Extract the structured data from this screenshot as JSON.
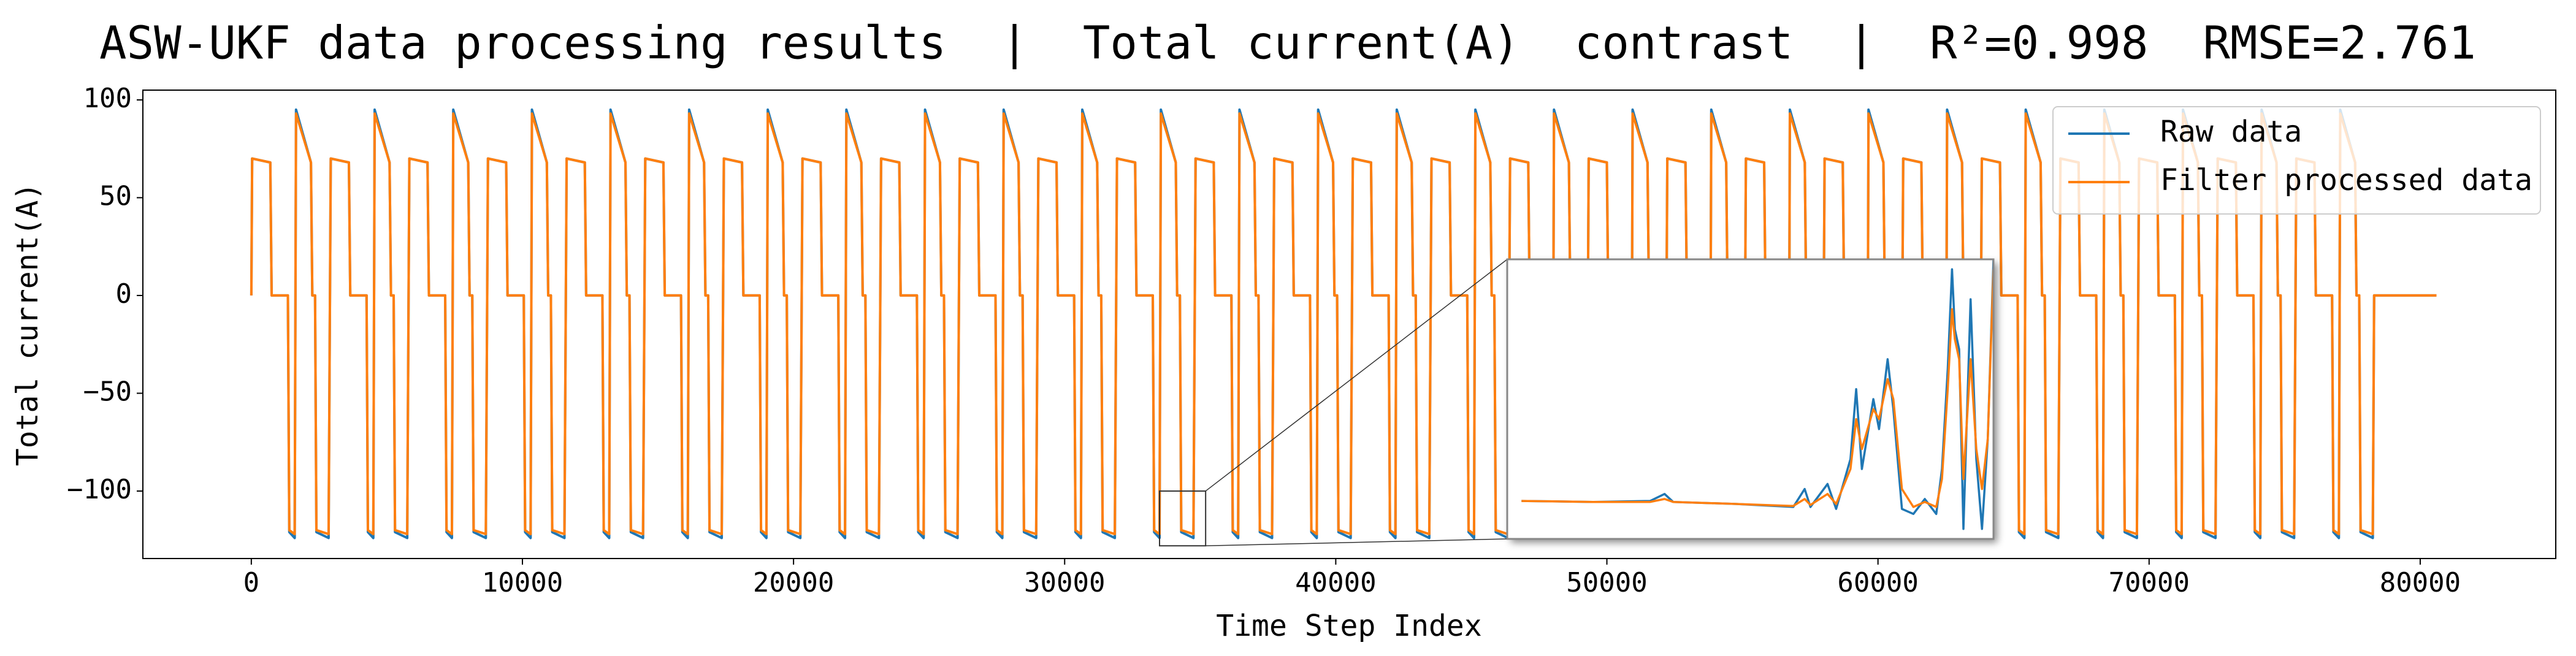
{
  "chart_data": [
    {
      "type": "line",
      "title": "ASW-UKF data processing results  |  Total current(A)  contrast  |  R²=0.998  RMSE=2.761",
      "x_label": "Time Step Index",
      "y_label": "Total current(A)",
      "xlim": [
        -4000,
        85000
      ],
      "ylim": [
        -134.5,
        105
      ],
      "xticks": [
        0,
        10000,
        20000,
        30000,
        40000,
        50000,
        60000,
        70000,
        80000
      ],
      "yticks": [
        {
          "value": -100,
          "label": "−100"
        },
        {
          "value": -50,
          "label": "−50"
        },
        0,
        50,
        100
      ],
      "legend": "upper right",
      "x": [
        0,
        30,
        700,
        750,
        1350,
        1400,
        1600,
        1650,
        2200,
        2250,
        2350,
        2400,
        2850,
        2930,
        3600,
        3650,
        4250,
        4300,
        4500,
        4550,
        5100,
        5150,
        5250,
        5300,
        5750,
        5830,
        6500,
        6550,
        7150,
        7200,
        7400,
        7450,
        8000,
        8050,
        8150,
        8200,
        8650,
        8730,
        9400,
        9450,
        10050,
        10100,
        10300,
        10350,
        10900,
        10950,
        11050,
        11100,
        11550,
        11630,
        12300,
        12350,
        12950,
        13000,
        13200,
        13250,
        13800,
        13850,
        13950,
        14000,
        14450,
        14530,
        15200,
        15250,
        15850,
        15900,
        16100,
        16150,
        16700,
        16750,
        16850,
        16900,
        17350,
        17430,
        18100,
        18150,
        18750,
        18800,
        19000,
        19050,
        19600,
        19650,
        19750,
        19800,
        20250,
        20330,
        21000,
        21050,
        21650,
        21700,
        21900,
        21950,
        22500,
        22550,
        22650,
        22700,
        23150,
        23230,
        23900,
        23950,
        24550,
        24600,
        24800,
        24850,
        25400,
        25450,
        25550,
        25600,
        26050,
        26130,
        26800,
        26850,
        27450,
        27500,
        27700,
        27750,
        28300,
        28350,
        28450,
        28500,
        28950,
        29030,
        29700,
        29750,
        30350,
        30400,
        30600,
        30650,
        31200,
        31250,
        31350,
        31400,
        31850,
        31930,
        32600,
        32650,
        33250,
        33300,
        33500,
        33550,
        34100,
        34150,
        34250,
        34300,
        34750,
        34830,
        35500,
        35550,
        36150,
        36200,
        36400,
        36450,
        37000,
        37050,
        37150,
        37200,
        37650,
        37730,
        38400,
        38450,
        39050,
        39100,
        39300,
        39350,
        39900,
        39950,
        40050,
        40100,
        40550,
        40630,
        41300,
        41350,
        41950,
        42000,
        42200,
        42250,
        42800,
        42850,
        42950,
        43000,
        43450,
        43530,
        44200,
        44250,
        44850,
        44900,
        45100,
        45150,
        45700,
        45750,
        45850,
        45900,
        46350,
        46430,
        47100,
        47150,
        47750,
        47800,
        48000,
        48050,
        48600,
        48650,
        48750,
        48800,
        49250,
        49330,
        50000,
        50050,
        50650,
        50700,
        50900,
        50950,
        51500,
        51550,
        51650,
        51700,
        52150,
        52230,
        52900,
        52950,
        53550,
        53600,
        53800,
        53850,
        54400,
        54450,
        54550,
        54600,
        55050,
        55130,
        55800,
        55850,
        56450,
        56500,
        56700,
        56750,
        57300,
        57350,
        57450,
        57500,
        57950,
        58030,
        58700,
        58750,
        59350,
        59400,
        59600,
        59650,
        60200,
        60250,
        60350,
        60400,
        60850,
        60930,
        61600,
        61650,
        62250,
        62300,
        62500,
        62550,
        63100,
        63150,
        63250,
        63300,
        63750,
        63830,
        64500,
        64550,
        65150,
        65200,
        65400,
        65450,
        66000,
        66050,
        66150,
        66200,
        66650,
        66730,
        67400,
        67450,
        68050,
        68100,
        68300,
        68350,
        68900,
        68950,
        69050,
        69100,
        69550,
        69630,
        70300,
        70350,
        70950,
        71000,
        71200,
        71250,
        71800,
        71850,
        71950,
        72000,
        72450,
        72530,
        73200,
        73250,
        73850,
        73900,
        74100,
        74150,
        74700,
        74750,
        74850,
        74900,
        75350,
        75430,
        76100,
        76150,
        76750,
        76800,
        77000,
        77050,
        77600,
        77650,
        77750,
        77800,
        78250,
        78300,
        80600
      ],
      "series": [
        {
          "name": "Raw data",
          "color": "#1f77b4",
          "values": [
            0,
            70,
            68,
            0,
            0,
            -121,
            -124,
            95,
            68,
            0,
            0,
            -121,
            -124,
            70,
            68,
            0,
            0,
            -121,
            -124,
            95,
            68,
            0,
            0,
            -121,
            -124,
            70,
            68,
            0,
            0,
            -121,
            -124,
            95,
            68,
            0,
            0,
            -121,
            -124,
            70,
            68,
            0,
            0,
            -121,
            -124,
            95,
            68,
            0,
            0,
            -121,
            -124,
            70,
            68,
            0,
            0,
            -121,
            -124,
            95,
            68,
            0,
            0,
            -121,
            -124,
            70,
            68,
            0,
            0,
            -121,
            -124,
            95,
            68,
            0,
            0,
            -121,
            -124,
            70,
            68,
            0,
            0,
            -121,
            -124,
            95,
            68,
            0,
            0,
            -121,
            -124,
            70,
            68,
            0,
            0,
            -121,
            -124,
            95,
            68,
            0,
            0,
            -121,
            -124,
            70,
            68,
            0,
            0,
            -121,
            -124,
            95,
            68,
            0,
            0,
            -121,
            -124,
            70,
            68,
            0,
            0,
            -121,
            -124,
            95,
            68,
            0,
            0,
            -121,
            -124,
            70,
            68,
            0,
            0,
            -121,
            -124,
            95,
            68,
            0,
            0,
            -121,
            -124,
            70,
            68,
            0,
            0,
            -121,
            -124,
            95,
            68,
            0,
            0,
            -121,
            -124,
            70,
            68,
            0,
            0,
            -121,
            -124,
            95,
            68,
            0,
            0,
            -121,
            -124,
            70,
            68,
            0,
            0,
            -121,
            -124,
            95,
            68,
            0,
            0,
            -121,
            -124,
            70,
            68,
            0,
            0,
            -121,
            -124,
            95,
            68,
            0,
            0,
            -121,
            -124,
            70,
            68,
            0,
            0,
            -121,
            -124,
            95,
            68,
            0,
            0,
            -121,
            -124,
            70,
            68,
            0,
            0,
            -121,
            -124,
            95,
            68,
            0,
            0,
            -121,
            -124,
            70,
            68,
            0,
            0,
            -121,
            -124,
            95,
            68,
            0,
            0,
            -121,
            -124,
            70,
            68,
            0,
            0,
            -121,
            -124,
            95,
            68,
            0,
            0,
            -121,
            -124,
            70,
            68,
            0,
            0,
            -121,
            -124,
            95,
            68,
            0,
            0,
            -121,
            -124,
            70,
            68,
            0,
            0,
            -121,
            -124,
            95,
            68,
            0,
            0,
            -121,
            -124,
            70,
            68,
            0,
            0,
            -121,
            -124,
            95,
            68,
            0,
            0,
            -121,
            -124,
            70,
            68,
            0,
            0,
            -121,
            -124,
            95,
            68,
            0,
            0,
            -121,
            -124,
            70,
            68,
            0,
            0,
            -121,
            -124,
            95,
            68,
            0,
            0,
            -121,
            -124,
            70,
            68,
            0,
            0,
            -121,
            -124,
            95,
            68,
            0,
            0,
            -121,
            -124,
            70,
            68,
            0,
            0,
            -121,
            -124,
            95,
            68,
            0,
            0,
            -121,
            -124,
            70,
            68,
            0,
            0,
            -121,
            -124,
            95,
            68,
            0,
            0,
            -121,
            -124,
            0,
            0
          ]
        },
        {
          "name": "Filter processed data",
          "color": "#ff7f0e",
          "values": [
            0,
            70,
            68,
            0,
            0,
            -120,
            -122,
            93,
            68,
            0,
            0,
            -120,
            -122,
            70,
            68,
            0,
            0,
            -120,
            -122,
            93,
            68,
            0,
            0,
            -120,
            -122,
            70,
            68,
            0,
            0,
            -120,
            -122,
            93,
            68,
            0,
            0,
            -120,
            -122,
            70,
            68,
            0,
            0,
            -120,
            -122,
            93,
            68,
            0,
            0,
            -120,
            -122,
            70,
            68,
            0,
            0,
            -120,
            -122,
            93,
            68,
            0,
            0,
            -120,
            -122,
            70,
            68,
            0,
            0,
            -120,
            -122,
            93,
            68,
            0,
            0,
            -120,
            -122,
            70,
            68,
            0,
            0,
            -120,
            -122,
            93,
            68,
            0,
            0,
            -120,
            -122,
            70,
            68,
            0,
            0,
            -120,
            -122,
            93,
            68,
            0,
            0,
            -120,
            -122,
            70,
            68,
            0,
            0,
            -120,
            -122,
            93,
            68,
            0,
            0,
            -120,
            -122,
            70,
            68,
            0,
            0,
            -120,
            -122,
            93,
            68,
            0,
            0,
            -120,
            -122,
            70,
            68,
            0,
            0,
            -120,
            -122,
            93,
            68,
            0,
            0,
            -120,
            -122,
            70,
            68,
            0,
            0,
            -120,
            -122,
            93,
            68,
            0,
            0,
            -120,
            -122,
            70,
            68,
            0,
            0,
            -120,
            -122,
            93,
            68,
            0,
            0,
            -120,
            -122,
            70,
            68,
            0,
            0,
            -120,
            -122,
            93,
            68,
            0,
            0,
            -120,
            -122,
            70,
            68,
            0,
            0,
            -120,
            -122,
            93,
            68,
            0,
            0,
            -120,
            -122,
            70,
            68,
            0,
            0,
            -120,
            -122,
            93,
            68,
            0,
            0,
            -120,
            -122,
            70,
            68,
            0,
            0,
            -120,
            -122,
            93,
            68,
            0,
            0,
            -120,
            -122,
            70,
            68,
            0,
            0,
            -120,
            -122,
            93,
            68,
            0,
            0,
            -120,
            -122,
            70,
            68,
            0,
            0,
            -120,
            -122,
            93,
            68,
            0,
            0,
            -120,
            -122,
            70,
            68,
            0,
            0,
            -120,
            -122,
            93,
            68,
            0,
            0,
            -120,
            -122,
            70,
            68,
            0,
            0,
            -120,
            -122,
            93,
            68,
            0,
            0,
            -120,
            -122,
            70,
            68,
            0,
            0,
            -120,
            -122,
            93,
            68,
            0,
            0,
            -120,
            -122,
            70,
            68,
            0,
            0,
            -120,
            -122,
            93,
            68,
            0,
            0,
            -120,
            -122,
            70,
            68,
            0,
            0,
            -120,
            -122,
            93,
            68,
            0,
            0,
            -120,
            -122,
            70,
            68,
            0,
            0,
            -120,
            -122,
            93,
            68,
            0,
            0,
            -120,
            -122,
            70,
            68,
            0,
            0,
            -120,
            -122,
            93,
            68,
            0,
            0,
            -120,
            -122,
            70,
            68,
            0,
            0,
            -120,
            -122,
            93,
            68,
            0,
            0,
            -120,
            -122,
            0,
            0
          ]
        }
      ]
    },
    {
      "type": "line",
      "xlim": [
        33500,
        35200
      ],
      "ylim": [
        -128,
        -100
      ],
      "x": [
        33550,
        33800,
        34000,
        34050,
        34080,
        34300,
        34500,
        34540,
        34560,
        34620,
        34650,
        34700,
        34720,
        34740,
        34780,
        34800,
        34830,
        34850,
        34880,
        34920,
        34960,
        35000,
        35020,
        35040,
        35055,
        35065,
        35080,
        35095,
        35120,
        35140,
        35160,
        35180,
        35200
      ],
      "series": [
        {
          "color": "#1f77b4",
          "values": [
            -124.2,
            -124.3,
            -124.2,
            -123.5,
            -124.3,
            -124.5,
            -124.8,
            -123,
            -124.8,
            -122.5,
            -125,
            -120,
            -113,
            -121,
            -114,
            -117,
            -110,
            -115,
            -125,
            -125.5,
            -124,
            -125.5,
            -121,
            -111,
            -101,
            -107,
            -109,
            -127,
            -104,
            -120,
            -127,
            -118,
            -100
          ]
        },
        {
          "color": "#ff7f0e",
          "values": [
            -124.2,
            -124.3,
            -124.3,
            -124,
            -124.3,
            -124.5,
            -124.7,
            -124,
            -124.6,
            -123.5,
            -124.5,
            -121,
            -116,
            -119,
            -115,
            -116,
            -112,
            -114,
            -123,
            -124.8,
            -124.3,
            -124.8,
            -122,
            -113,
            -105,
            -108,
            -110,
            -122,
            -110,
            -119,
            -123,
            -118,
            -101
          ]
        }
      ]
    }
  ]
}
